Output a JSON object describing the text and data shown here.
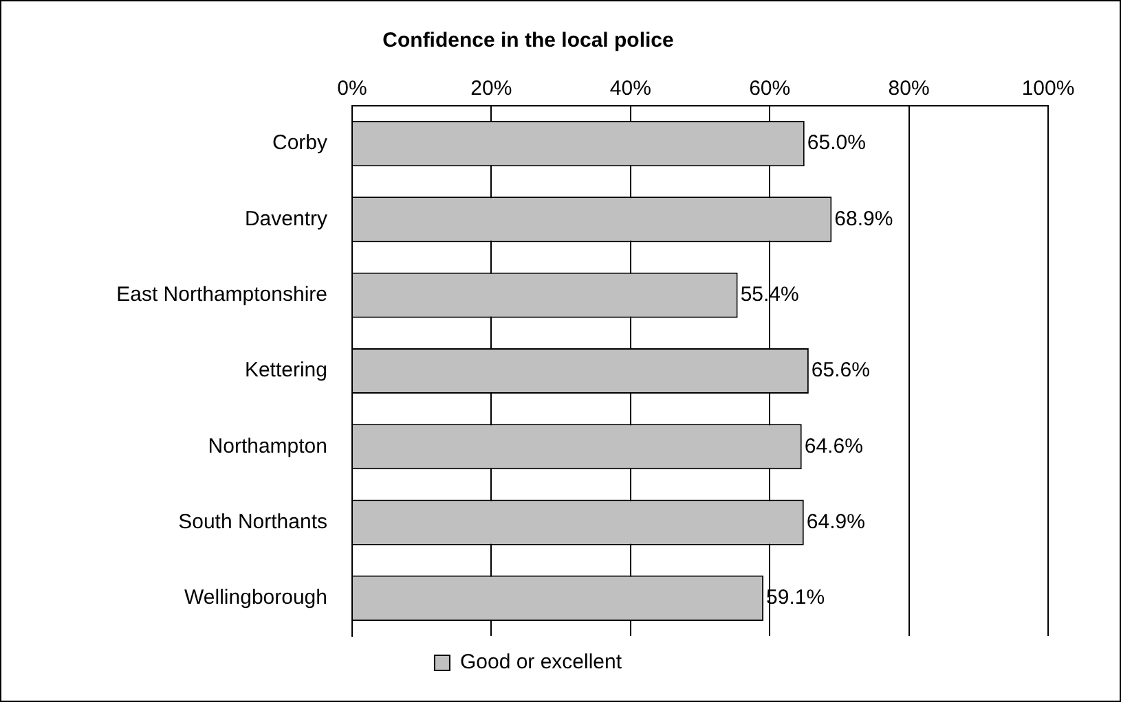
{
  "chart_data": {
    "type": "bar",
    "orientation": "horizontal",
    "title": "Confidence in the local police",
    "categories": [
      "Corby",
      "Daventry",
      "East Northamptonshire",
      "Kettering",
      "Northampton",
      "South Northants",
      "Wellingborough"
    ],
    "series": [
      {
        "name": "Good or excellent",
        "color": "#c0c0c0",
        "values": [
          65.0,
          68.9,
          55.4,
          65.6,
          64.6,
          64.9,
          59.1
        ],
        "value_labels": [
          "65.0%",
          "68.9%",
          "55.4%",
          "65.6%",
          "64.6%",
          "64.9%",
          "59.1%"
        ]
      }
    ],
    "xlim": [
      0,
      100
    ],
    "xticks": [
      {
        "value": 0,
        "label": "0%"
      },
      {
        "value": 20,
        "label": "20%"
      },
      {
        "value": 40,
        "label": "40%"
      },
      {
        "value": 60,
        "label": "60%"
      },
      {
        "value": 80,
        "label": "80%"
      },
      {
        "value": 100,
        "label": "100%"
      }
    ],
    "grid": "x",
    "legend": "bottom"
  }
}
